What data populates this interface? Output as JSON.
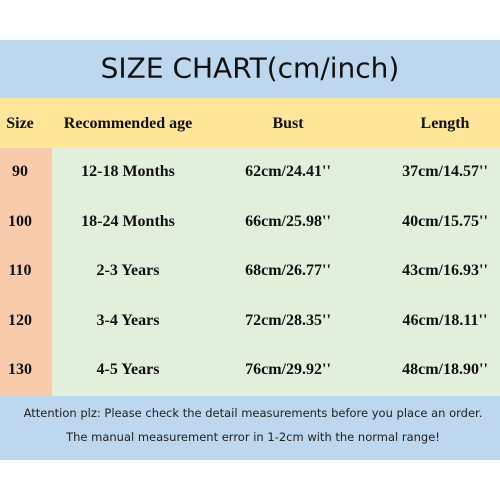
{
  "header": {
    "title": "SIZE CHART(cm/inch)"
  },
  "table": {
    "columns": [
      "Size",
      "Recommended age",
      "Bust",
      "Length"
    ],
    "rows": [
      [
        "90",
        "12-18 Months",
        "62cm/24.41''",
        "37cm/14.57''"
      ],
      [
        "100",
        "18-24 Months",
        "66cm/25.98''",
        "40cm/15.75''"
      ],
      [
        "110",
        "2-3 Years",
        "68cm/26.77''",
        "43cm/16.93''"
      ],
      [
        "120",
        "3-4 Years",
        "72cm/28.35''",
        "46cm/18.11''"
      ],
      [
        "130",
        "4-5 Years",
        "76cm/29.92''",
        "48cm/18.90''"
      ]
    ]
  },
  "footer": {
    "notes": [
      "Attention plz:  Please check the detail measurements before you place an order.",
      "The manual measurement error in 1-2cm with the normal range!"
    ]
  }
}
